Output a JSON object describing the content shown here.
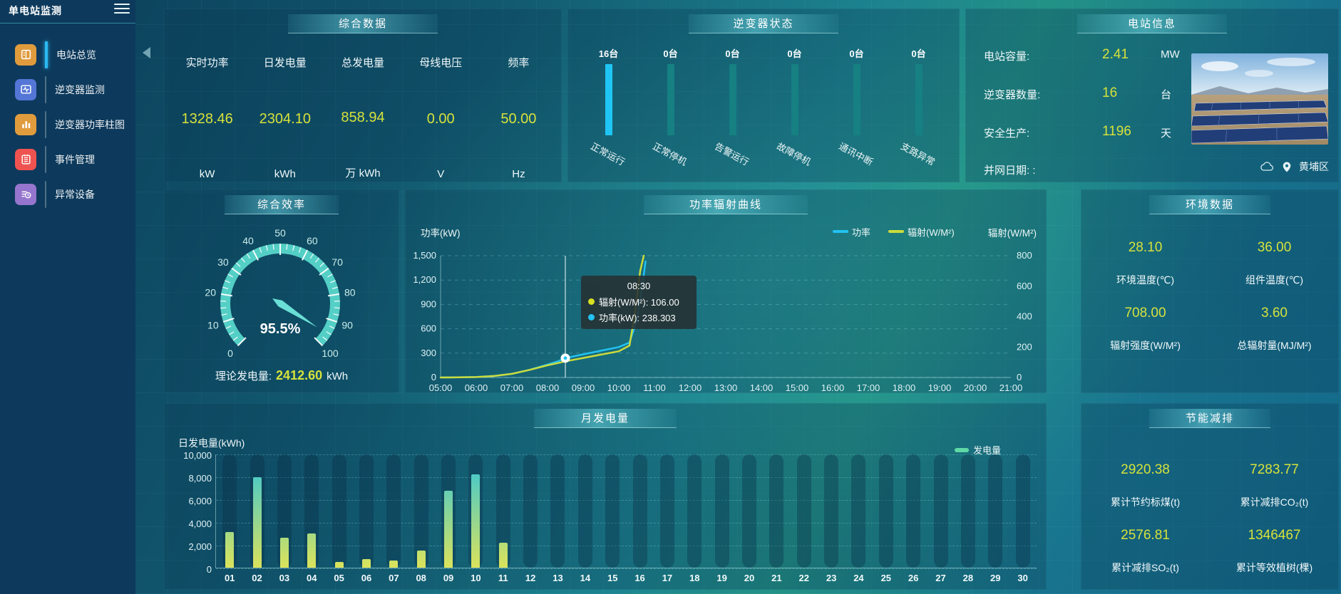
{
  "app": {
    "title": "单电站监测"
  },
  "sidebar": {
    "items": [
      {
        "label": "电站总览",
        "icon": "station-overview-icon",
        "color": "#e09b3d",
        "active": true
      },
      {
        "label": "逆变器监测",
        "icon": "inverter-monitor-icon",
        "color": "#5476d6",
        "active": false
      },
      {
        "label": "逆变器功率柱图",
        "icon": "power-bars-icon",
        "color": "#e09b3d",
        "active": false
      },
      {
        "label": "事件管理",
        "icon": "event-manage-icon",
        "color": "#ef5350",
        "active": false
      },
      {
        "label": "异常设备",
        "icon": "abnormal-device-icon",
        "color": "#9575cd",
        "active": false
      }
    ]
  },
  "overview": {
    "title": "综合数据",
    "metrics": [
      {
        "label": "实时功率",
        "value": "1328.46",
        "unit": "kW"
      },
      {
        "label": "日发电量",
        "value": "2304.10",
        "unit": "kWh"
      },
      {
        "label": "总发电量",
        "value": "858.94",
        "unit": "万 kWh"
      },
      {
        "label": "母线电压",
        "value": "0.00",
        "unit": "V"
      },
      {
        "label": "频率",
        "value": "50.00",
        "unit": "Hz"
      }
    ]
  },
  "inverter_status": {
    "title": "逆变器状态",
    "bars": [
      {
        "count": "16台",
        "label": "正常运行",
        "highlight": true
      },
      {
        "count": "0台",
        "label": "正常停机",
        "highlight": false
      },
      {
        "count": "0台",
        "label": "告警运行",
        "highlight": false
      },
      {
        "count": "0台",
        "label": "故障停机",
        "highlight": false
      },
      {
        "count": "0台",
        "label": "通讯中断",
        "highlight": false
      },
      {
        "count": "0台",
        "label": "支路异常",
        "highlight": false
      }
    ],
    "highlight_color": "#1fc6f5",
    "normal_color": "#168082"
  },
  "station_info": {
    "title": "电站信息",
    "rows": [
      {
        "label": "电站容量:",
        "value": "2.41",
        "unit": "MW"
      },
      {
        "label": "逆变器数量:",
        "value": "16",
        "unit": "台"
      },
      {
        "label": "安全生产:",
        "value": "1196",
        "unit": "天"
      }
    ],
    "grid_date_label": "并网日期: :",
    "location": "黄埔区"
  },
  "efficiency": {
    "value_display": "95.5%",
    "theoretical_label": "理论发电量:",
    "theoretical_value": "2412.60",
    "theoretical_unit": "kWh"
  },
  "environment": {
    "title": "环境数据",
    "cells": [
      {
        "value": "28.10",
        "label": "环境温度(℃)"
      },
      {
        "value": "36.00",
        "label": "组件温度(℃)"
      },
      {
        "value": "708.00",
        "label": "辐射强度(W/M²)"
      },
      {
        "value": "3.60",
        "label": "总辐射量(MJ/M²)"
      }
    ]
  },
  "saving": {
    "title": "节能减排",
    "cells": [
      {
        "value": "2920.38",
        "label": "累计节约标煤(t)"
      },
      {
        "value": "7283.77",
        "label": "累计减排CO₂(t)"
      },
      {
        "value": "2576.81",
        "label": "累计减排SO₂(t)"
      },
      {
        "value": "1346467",
        "label": "累计等效植树(棵)"
      }
    ]
  },
  "chart_data": [
    {
      "id": "power_radiation",
      "type": "line",
      "title": "功率辐射曲线",
      "x_range": [
        5,
        21
      ],
      "x_ticks": [
        "05:00",
        "06:00",
        "07:00",
        "08:00",
        "09:00",
        "10:00",
        "11:00",
        "12:00",
        "13:00",
        "14:00",
        "15:00",
        "16:00",
        "17:00",
        "18:00",
        "19:00",
        "20:00",
        "21:00"
      ],
      "left_axis": {
        "label": "功率(kW)",
        "min": 0,
        "max": 1500,
        "ticks": [
          "0",
          "300",
          "600",
          "900",
          "1,200",
          "1,500"
        ]
      },
      "right_axis": {
        "label": "辐射(W/M²)",
        "min": 0,
        "max": 800,
        "ticks": [
          "0",
          "200",
          "400",
          "600",
          "800"
        ]
      },
      "legend": [
        {
          "label": "功率",
          "color": "#23c2f2"
        },
        {
          "label": "辐射(W/M²)",
          "color": "#cbdb3c"
        }
      ],
      "series": [
        {
          "name": "功率",
          "axis": "left",
          "color": "#23c2f2",
          "points": [
            [
              5,
              1
            ],
            [
              5.5,
              2
            ],
            [
              6,
              5
            ],
            [
              6.5,
              18
            ],
            [
              7,
              45
            ],
            [
              7.5,
              95
            ],
            [
              8,
              160
            ],
            [
              8.3,
              200
            ],
            [
              8.5,
              238.303
            ],
            [
              9,
              285
            ],
            [
              9.5,
              330
            ],
            [
              10,
              375
            ],
            [
              10.3,
              430
            ],
            [
              10.5,
              700
            ],
            [
              10.65,
              1100
            ],
            [
              10.75,
              1430
            ]
          ]
        },
        {
          "name": "辐射(W/M²)",
          "axis": "right",
          "color": "#cbdb3c",
          "points": [
            [
              5,
              0
            ],
            [
              5.5,
              1
            ],
            [
              6,
              3
            ],
            [
              6.5,
              10
            ],
            [
              7,
              24
            ],
            [
              7.5,
              50
            ],
            [
              8,
              80
            ],
            [
              8.3,
              95
            ],
            [
              8.5,
              106
            ],
            [
              9,
              128
            ],
            [
              9.5,
              150
            ],
            [
              10,
              172
            ],
            [
              10.3,
              210
            ],
            [
              10.45,
              420
            ],
            [
              10.6,
              700
            ],
            [
              10.7,
              800
            ]
          ]
        }
      ],
      "tooltip": {
        "x_hour": 8.5,
        "title": "08:30",
        "rows": [
          {
            "name": "辐射(W/M²)",
            "value": "106.00",
            "color": "#d9e021"
          },
          {
            "name": "功率(kW)",
            "value": "238.303",
            "color": "#23c2f2"
          }
        ]
      },
      "marker": {
        "x_hour": 8.5,
        "value": 238.303,
        "axis": "left"
      }
    },
    {
      "id": "monthly_energy",
      "type": "bar",
      "title": "月发电量",
      "ylabel": "日发电量(kWh)",
      "legend": "发电量",
      "categories": [
        "01",
        "02",
        "03",
        "04",
        "05",
        "06",
        "07",
        "08",
        "09",
        "10",
        "11",
        "12",
        "13",
        "14",
        "15",
        "16",
        "17",
        "18",
        "19",
        "20",
        "21",
        "22",
        "23",
        "24",
        "25",
        "26",
        "27",
        "28",
        "29",
        "30"
      ],
      "values": [
        3100,
        7950,
        2650,
        3000,
        500,
        750,
        620,
        1470,
        6750,
        8180,
        2200,
        0,
        0,
        0,
        0,
        0,
        0,
        0,
        0,
        0,
        0,
        0,
        0,
        0,
        0,
        0,
        0,
        0,
        0,
        0
      ],
      "ylim": [
        0,
        10000
      ],
      "y_ticks": [
        "0",
        "2,000",
        "4,000",
        "6,000",
        "8,000",
        "10,000"
      ],
      "bar_gradient": [
        "#dbe35b",
        "#2fc5dc"
      ]
    },
    {
      "id": "efficiency_gauge",
      "type": "gauge",
      "title": "综合效率",
      "value": 95.5,
      "min": 0,
      "max": 100,
      "major_tick": 10,
      "minor_tick": 2.5,
      "band_color": "#54cfc6"
    }
  ]
}
